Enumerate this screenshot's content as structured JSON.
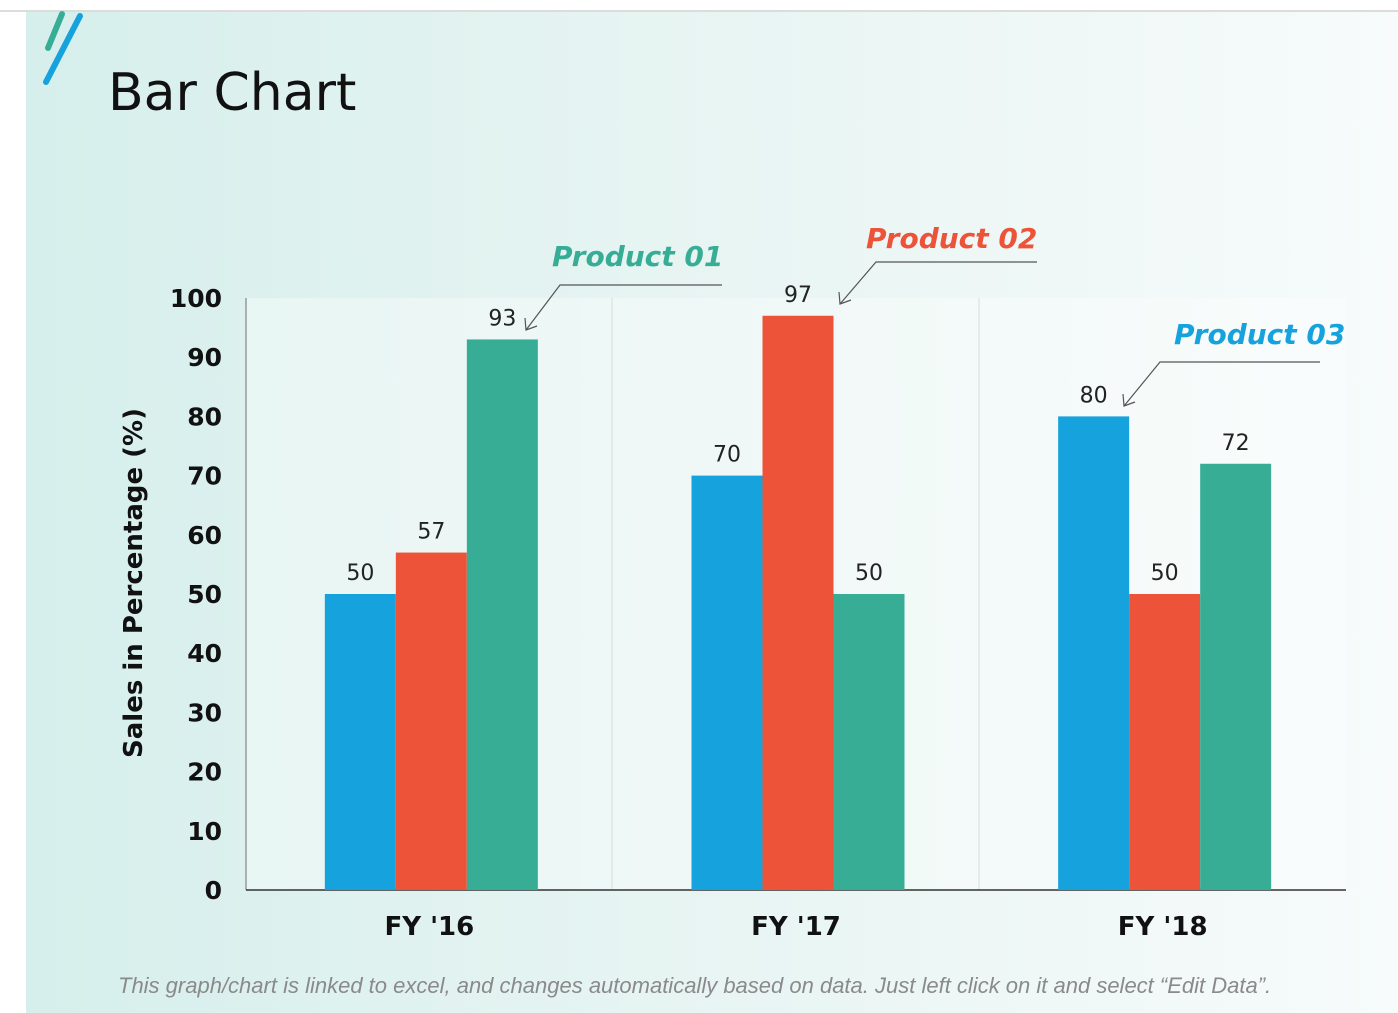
{
  "colors": {
    "product_01": "#37ad96",
    "product_02": "#ec5338",
    "product_03": "#16a2dd"
  },
  "footnote": "This graph/chart is linked to excel, and changes automatically based on data. Just left click on it and select “Edit Data”.",
  "chart_data": {
    "type": "bar",
    "title": "Bar Chart",
    "xlabel": "",
    "ylabel": "Sales in Percentage (%)",
    "ylim": [
      0,
      100
    ],
    "yticks": [
      "0",
      "10",
      "20",
      "30",
      "40",
      "50",
      "60",
      "70",
      "80",
      "90",
      "100"
    ],
    "categories": [
      "FY '16",
      "FY '17",
      "FY '18"
    ],
    "series": [
      {
        "name": "Product 03",
        "values": [
          50,
          70,
          80
        ]
      },
      {
        "name": "Product 02",
        "values": [
          57,
          97,
          50
        ]
      },
      {
        "name": "Product 01",
        "values": [
          93,
          50,
          72
        ]
      }
    ],
    "grid": false,
    "legend": "callout annotations"
  }
}
